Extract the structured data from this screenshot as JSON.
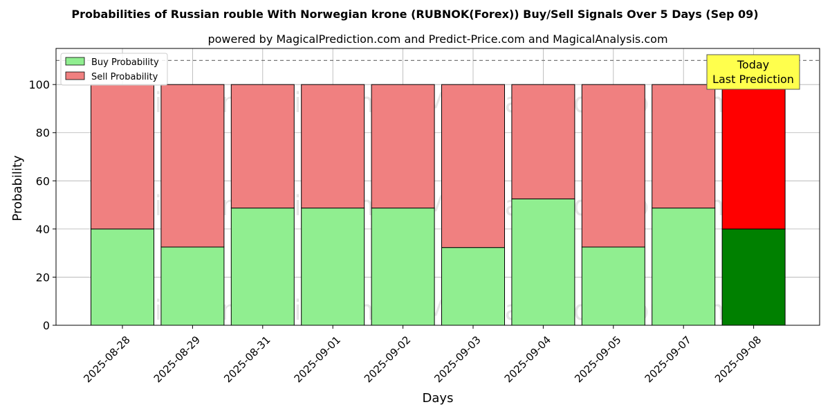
{
  "chart_data": {
    "type": "bar",
    "title": "Probabilities of Russian rouble With Norwegian krone (RUBNOK(Forex)) Buy/Sell Signals Over 5 Days (Sep 09)",
    "subtitle": "powered by MagicalPrediction.com and Predict-Price.com and MagicalAnalysis.com",
    "xlabel": "Days",
    "ylabel": "Probability",
    "ylim": [
      0,
      115
    ],
    "yticks": [
      0,
      20,
      40,
      60,
      80,
      100
    ],
    "grid": true,
    "legend_position": "top-left",
    "reference_line": 110,
    "categories": [
      "2025-08-28",
      "2025-08-29",
      "2025-08-31",
      "2025-09-01",
      "2025-09-02",
      "2025-09-03",
      "2025-09-04",
      "2025-09-05",
      "2025-09-07",
      "2025-09-08"
    ],
    "series": [
      {
        "name": "Buy Probability",
        "values": [
          40.0,
          32.5,
          48.7,
          48.7,
          48.7,
          32.3,
          52.5,
          32.5,
          48.7,
          40.0
        ]
      },
      {
        "name": "Sell Probability",
        "values": [
          60.0,
          67.5,
          51.3,
          51.3,
          51.3,
          67.7,
          47.5,
          67.5,
          51.3,
          60.0
        ]
      }
    ],
    "colors": {
      "buy": "#90ee90",
      "sell": "#f08080",
      "buy_last": "#008000",
      "sell_last": "#ff0000",
      "annotation_bg": "#ffff4d"
    },
    "annotation": {
      "line1": "Today",
      "line2": "Last Prediction"
    },
    "watermarks": [
      "MagicalAnalysis.com",
      "MagicalPrediction.com"
    ]
  }
}
